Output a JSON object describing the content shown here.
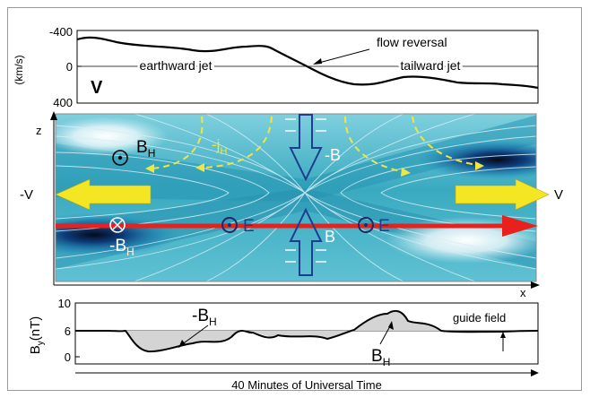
{
  "top_panel": {
    "y_ticks": [
      "-400",
      "0",
      "400"
    ],
    "y_label": "(km/s)",
    "label_v": "V",
    "annotation_flow_reversal": "flow reversal",
    "annotation_earthward": "earthward jet",
    "annotation_tailward": "tailward jet"
  },
  "middle_panel": {
    "axis_z": "z",
    "axis_x": "x",
    "label_bh": "B",
    "label_bh_sub": "H",
    "label_neg_bh": "-B",
    "label_neg_bh_sub": "H",
    "label_neg_jh": "-j",
    "label_neg_jh_sub": "H",
    "label_neg_b": "-B",
    "label_b": "B",
    "label_e_left": "E",
    "label_e_right": "E",
    "label_neg_v": "-V",
    "label_v": "V",
    "colors": {
      "ohm_arrow": "#e8211d",
      "flow_arrow": "#f5e623",
      "current_lines": "#f0e642",
      "field_arrow": "#1f3c8f",
      "background_teal": "#35a9bf"
    }
  },
  "bottom_panel": {
    "y_ticks": [
      "10",
      "6",
      "0"
    ],
    "y_label_main": "B",
    "y_label_sub": "y",
    "y_label_units": "(nT)",
    "label_neg_bh": "-B",
    "label_neg_bh_sub": "H",
    "label_bh": "B",
    "label_bh_sub": "H",
    "label_guide_field": "guide field",
    "time_axis_label": "40 Minutes of Universal Time"
  }
}
